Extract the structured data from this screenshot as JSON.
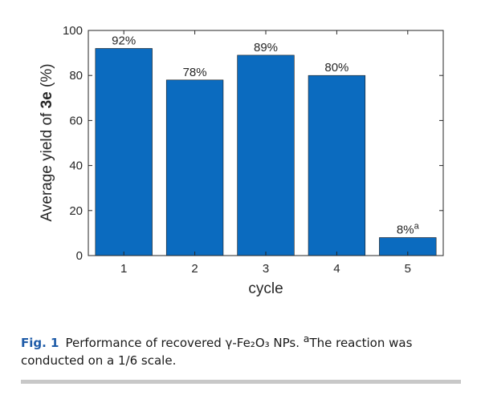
{
  "chart_data": {
    "type": "bar",
    "categories": [
      "1",
      "2",
      "3",
      "4",
      "5"
    ],
    "values": [
      92,
      78,
      89,
      80,
      8
    ],
    "data_labels": [
      "92%",
      "78%",
      "89%",
      "80%",
      "8%"
    ],
    "data_label_superscripts": [
      "",
      "",
      "",
      "",
      "a"
    ],
    "xlabel": "cycle",
    "ylabel_prefix": "Average yield of ",
    "ylabel_bold": "3e",
    "ylabel_suffix": " (%)",
    "ylim": [
      0,
      100
    ],
    "yticks": [
      "0",
      "20",
      "40",
      "60",
      "80",
      "100"
    ],
    "bar_color": "#0b6bbf",
    "grid": false
  },
  "caption": {
    "label": "Fig. 1",
    "text_before": "Performance of recovered γ-Fe₂O₃ NPs. ",
    "superscript": "a",
    "text_after": "The reaction was conducted on a 1/6 scale."
  }
}
